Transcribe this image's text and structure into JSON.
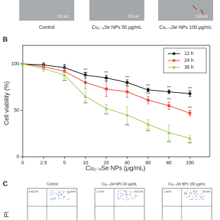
{
  "panel_a": {
    "scale_labels": [
      "100 μm",
      "100 μm",
      "100 μm"
    ],
    "captions": [
      "Control",
      "Cu₂₋ₓSe NPs 50 μg/mL",
      "Cu₂₋ₓSe NPs 100 μg/mL"
    ]
  },
  "panel_b_label": "B",
  "chart_data": {
    "type": "line",
    "x_label": "Cu₂₋ₓSe NPs (μg/mL)",
    "y_label": "Cell viability (%)",
    "categories": [
      "0",
      "2.5",
      "5",
      "10",
      "20",
      "40",
      "60",
      "80",
      "100"
    ],
    "ylim": [
      0,
      120
    ],
    "yticks": [
      0,
      50,
      100
    ],
    "legend": "upper right",
    "series": [
      {
        "name": "12 h",
        "color": "#111111",
        "values": [
          100,
          99,
          96,
          88,
          85,
          80,
          72,
          70,
          68
        ],
        "errors": [
          1,
          2,
          3,
          3,
          3,
          3,
          2,
          2,
          3
        ],
        "significance": [
          null,
          null,
          null,
          "***",
          "***",
          "***",
          "***",
          "***",
          "***"
        ]
      },
      {
        "name": "24 h",
        "color": "#e0483a",
        "values": [
          100,
          97,
          92,
          80,
          73,
          70,
          61,
          55,
          47
        ],
        "errors": [
          1,
          3,
          4,
          7,
          8,
          6,
          4,
          4,
          3
        ],
        "significance": [
          null,
          null,
          "*",
          "***",
          "***",
          "***",
          "***",
          "***",
          "***"
        ]
      },
      {
        "name": "36 h",
        "color": "#9acd4a",
        "values": [
          100,
          95,
          88,
          65,
          52,
          45,
          35,
          26,
          20
        ],
        "errors": [
          1,
          3,
          4,
          5,
          4,
          9,
          5,
          8,
          3
        ],
        "significance": [
          null,
          null,
          "***",
          "***",
          "***",
          "***",
          "***",
          "***",
          "***"
        ]
      }
    ]
  },
  "panel_c": {
    "label": "C",
    "y_label": "PI",
    "titles": [
      "Control",
      "Cu₂₋ₓSe NPs 50 μg/mL",
      "Cu₂₋ₓSe NPs 100 μg/mL"
    ],
    "quadrants": [
      [
        "0.612%",
        "6.29%"
      ],
      [
        "1.74%",
        "16.2%"
      ],
      [
        "1.30%",
        "20.6%"
      ]
    ]
  }
}
